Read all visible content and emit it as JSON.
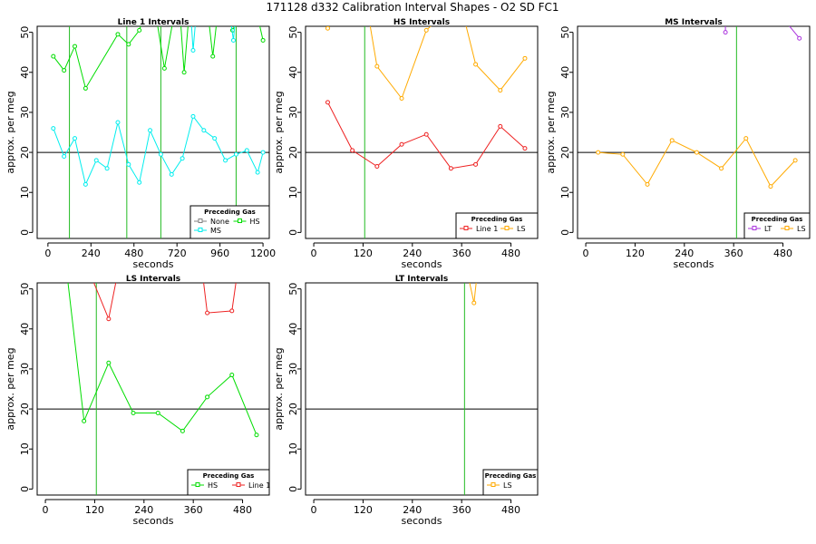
{
  "title": "171128  d332   Calibration Interval Shapes - O2 SD FC1",
  "chart_data": [
    {
      "type": "line",
      "title": "Line 1 Intervals",
      "xlabel": "seconds",
      "ylabel": "approx. per meg",
      "xlim": [
        -60,
        1235
      ],
      "ylim": [
        -1.5,
        51.5
      ],
      "xticks": [
        0,
        240,
        480,
        720,
        960,
        1200
      ],
      "yticks": [
        0,
        10,
        20,
        30,
        40,
        50
      ],
      "hline": 20,
      "vlines": [
        120,
        440,
        630,
        1050
      ],
      "legend": {
        "title": "Preceding Gas",
        "entries": [
          {
            "name": "None",
            "color": "#808080"
          },
          {
            "name": "HS",
            "color": "#00dd00"
          },
          {
            "name": "MS",
            "color": "#00eeee"
          }
        ]
      },
      "series": [
        {
          "name": "HS",
          "color": "#00dd00",
          "segments": [
            [
              [
                30,
                44
              ],
              [
                90,
                40.5
              ],
              [
                150,
                46.5
              ],
              [
                210,
                36
              ],
              [
                390,
                49.5
              ],
              [
                450,
                47
              ],
              [
                510,
                50.5
              ],
              [
                550,
                56
              ]
            ],
            [
              [
                600,
                55
              ],
              [
                650,
                41
              ],
              [
                710,
                56
              ]
            ],
            [
              [
                740,
                53
              ],
              [
                760,
                40
              ],
              [
                790,
                56
              ]
            ],
            [
              [
                890,
                56
              ],
              [
                920,
                44
              ],
              [
                950,
                56
              ]
            ],
            [
              [
                990,
                56
              ],
              [
                1030,
                50.5
              ],
              [
                1080,
                55
              ]
            ],
            [
              [
                1180,
                52
              ],
              [
                1200,
                48
              ]
            ]
          ]
        },
        {
          "name": "MS",
          "color": "#00eeee",
          "segments": [
            [
              [
                30,
                26
              ],
              [
                90,
                19
              ],
              [
                150,
                23.5
              ],
              [
                210,
                12
              ],
              [
                270,
                18
              ],
              [
                330,
                16
              ],
              [
                390,
                27.5
              ],
              [
                450,
                17
              ],
              [
                510,
                12.5
              ],
              [
                570,
                25.5
              ],
              [
                630,
                19.5
              ],
              [
                690,
                14.5
              ],
              [
                750,
                18.5
              ],
              [
                810,
                29
              ],
              [
                870,
                25.5
              ],
              [
                930,
                23.5
              ],
              [
                990,
                18
              ],
              [
                1050,
                19.5
              ],
              [
                1110,
                20.5
              ],
              [
                1170,
                15
              ],
              [
                1200,
                20
              ]
            ]
          ]
        },
        {
          "name": "MS-spikes",
          "color": "#00eeee",
          "segments": [
            [
              [
                795,
                56
              ],
              [
                810,
                45.5
              ],
              [
                830,
                56
              ]
            ],
            [
              [
                1010,
                56
              ],
              [
                1035,
                48
              ],
              [
                1050,
                56
              ]
            ]
          ]
        }
      ]
    },
    {
      "type": "line",
      "title": "HS Intervals",
      "xlabel": "seconds",
      "ylabel": "approx. per meg",
      "xlim": [
        -20,
        545
      ],
      "ylim": [
        -1.5,
        51.5
      ],
      "xticks": [
        0,
        120,
        240,
        360,
        480
      ],
      "yticks": [
        0,
        10,
        20,
        30,
        40,
        50
      ],
      "hline": 20,
      "vlines": [
        124
      ],
      "legend": {
        "title": "Preceding Gas",
        "entries": [
          {
            "name": "Line 1",
            "color": "#ee2222"
          },
          {
            "name": "LS",
            "color": "#ffaa00"
          }
        ]
      },
      "series": [
        {
          "name": "Line 1",
          "color": "#ee2222",
          "segments": [
            [
              [
                34,
                32.5
              ],
              [
                94,
                20.5
              ],
              [
                154,
                16.5
              ],
              [
                214,
                22
              ],
              [
                274,
                24.5
              ],
              [
                334,
                16
              ],
              [
                394,
                17
              ],
              [
                454,
                26.5
              ],
              [
                514,
                21
              ]
            ]
          ]
        },
        {
          "name": "LS",
          "color": "#ffaa00",
          "segments": [
            [
              [
                34,
                51
              ],
              [
                60,
                56
              ]
            ],
            [
              [
                130,
                56
              ],
              [
                154,
                41.5
              ],
              [
                214,
                33.5
              ],
              [
                274,
                50.5
              ],
              [
                300,
                53
              ]
            ],
            [
              [
                360,
                56
              ],
              [
                394,
                42
              ],
              [
                454,
                35.5
              ],
              [
                514,
                43.5
              ]
            ]
          ]
        }
      ]
    },
    {
      "type": "line",
      "title": "MS Intervals",
      "xlabel": "seconds",
      "ylabel": "approx. per meg",
      "xlim": [
        -20,
        545
      ],
      "ylim": [
        -1.5,
        51.5
      ],
      "xticks": [
        0,
        120,
        240,
        360,
        480
      ],
      "yticks": [
        0,
        10,
        20,
        30,
        40,
        50
      ],
      "hline": 20,
      "vlines": [
        367
      ],
      "legend": {
        "title": "Preceding Gas",
        "entries": [
          {
            "name": "LT",
            "color": "#aa33dd"
          },
          {
            "name": "LS",
            "color": "#ffaa00"
          }
        ]
      },
      "series": [
        {
          "name": "LS",
          "color": "#ffaa00",
          "segments": [
            [
              [
                30,
                20
              ],
              [
                90,
                19.5
              ],
              [
                150,
                12
              ],
              [
                210,
                23
              ],
              [
                270,
                20
              ],
              [
                330,
                16
              ],
              [
                390,
                23.5
              ],
              [
                450,
                11.5
              ],
              [
                510,
                18
              ]
            ]
          ]
        },
        {
          "name": "LT",
          "color": "#aa33dd",
          "segments": [
            [
              [
                340,
                56
              ],
              [
                340,
                50
              ]
            ],
            [
              [
                460,
                56
              ],
              [
                520,
                48.5
              ]
            ]
          ]
        }
      ]
    },
    {
      "type": "line",
      "title": "LS Intervals",
      "xlabel": "seconds",
      "ylabel": "approx. per meg",
      "xlim": [
        -20,
        545
      ],
      "ylim": [
        -1.5,
        51.5
      ],
      "xticks": [
        0,
        120,
        240,
        360,
        480
      ],
      "yticks": [
        0,
        10,
        20,
        30,
        40,
        50
      ],
      "hline": 20,
      "vlines": [
        124
      ],
      "legend": {
        "title": "Preceding Gas",
        "entries": [
          {
            "name": "HS",
            "color": "#00dd00"
          },
          {
            "name": "Line 1",
            "color": "#ee2222"
          }
        ]
      },
      "series": [
        {
          "name": "HS",
          "color": "#00dd00",
          "segments": [
            [
              [
                50,
                56
              ],
              [
                94,
                17
              ],
              [
                154,
                31.5
              ],
              [
                214,
                19
              ],
              [
                274,
                19
              ],
              [
                334,
                14.5
              ],
              [
                394,
                23
              ],
              [
                454,
                28.5
              ],
              [
                514,
                13.5
              ]
            ]
          ]
        },
        {
          "name": "Line 1",
          "color": "#ee2222",
          "segments": [
            [
              [
                100,
                56
              ],
              [
                154,
                42.5
              ],
              [
                180,
                56
              ]
            ],
            [
              [
                380,
                56
              ],
              [
                394,
                44
              ],
              [
                454,
                44.5
              ],
              [
                470,
                56
              ]
            ]
          ]
        }
      ]
    },
    {
      "type": "line",
      "title": "LT Intervals",
      "xlabel": "seconds",
      "ylabel": "approx. per meg",
      "xlim": [
        -20,
        545
      ],
      "ylim": [
        -1.5,
        51.5
      ],
      "xticks": [
        0,
        120,
        240,
        360,
        480
      ],
      "yticks": [
        0,
        10,
        20,
        30,
        40,
        50
      ],
      "hline": 20,
      "vlines": [
        367
      ],
      "legend": {
        "title": "Preceding Gas",
        "entries": [
          {
            "name": "LS",
            "color": "#ffaa00"
          }
        ]
      },
      "series": [
        {
          "name": "LS",
          "color": "#ffaa00",
          "segments": [
            [
              [
                370,
                56
              ],
              [
                390,
                46.5
              ],
              [
                400,
                56
              ]
            ]
          ]
        }
      ]
    }
  ]
}
